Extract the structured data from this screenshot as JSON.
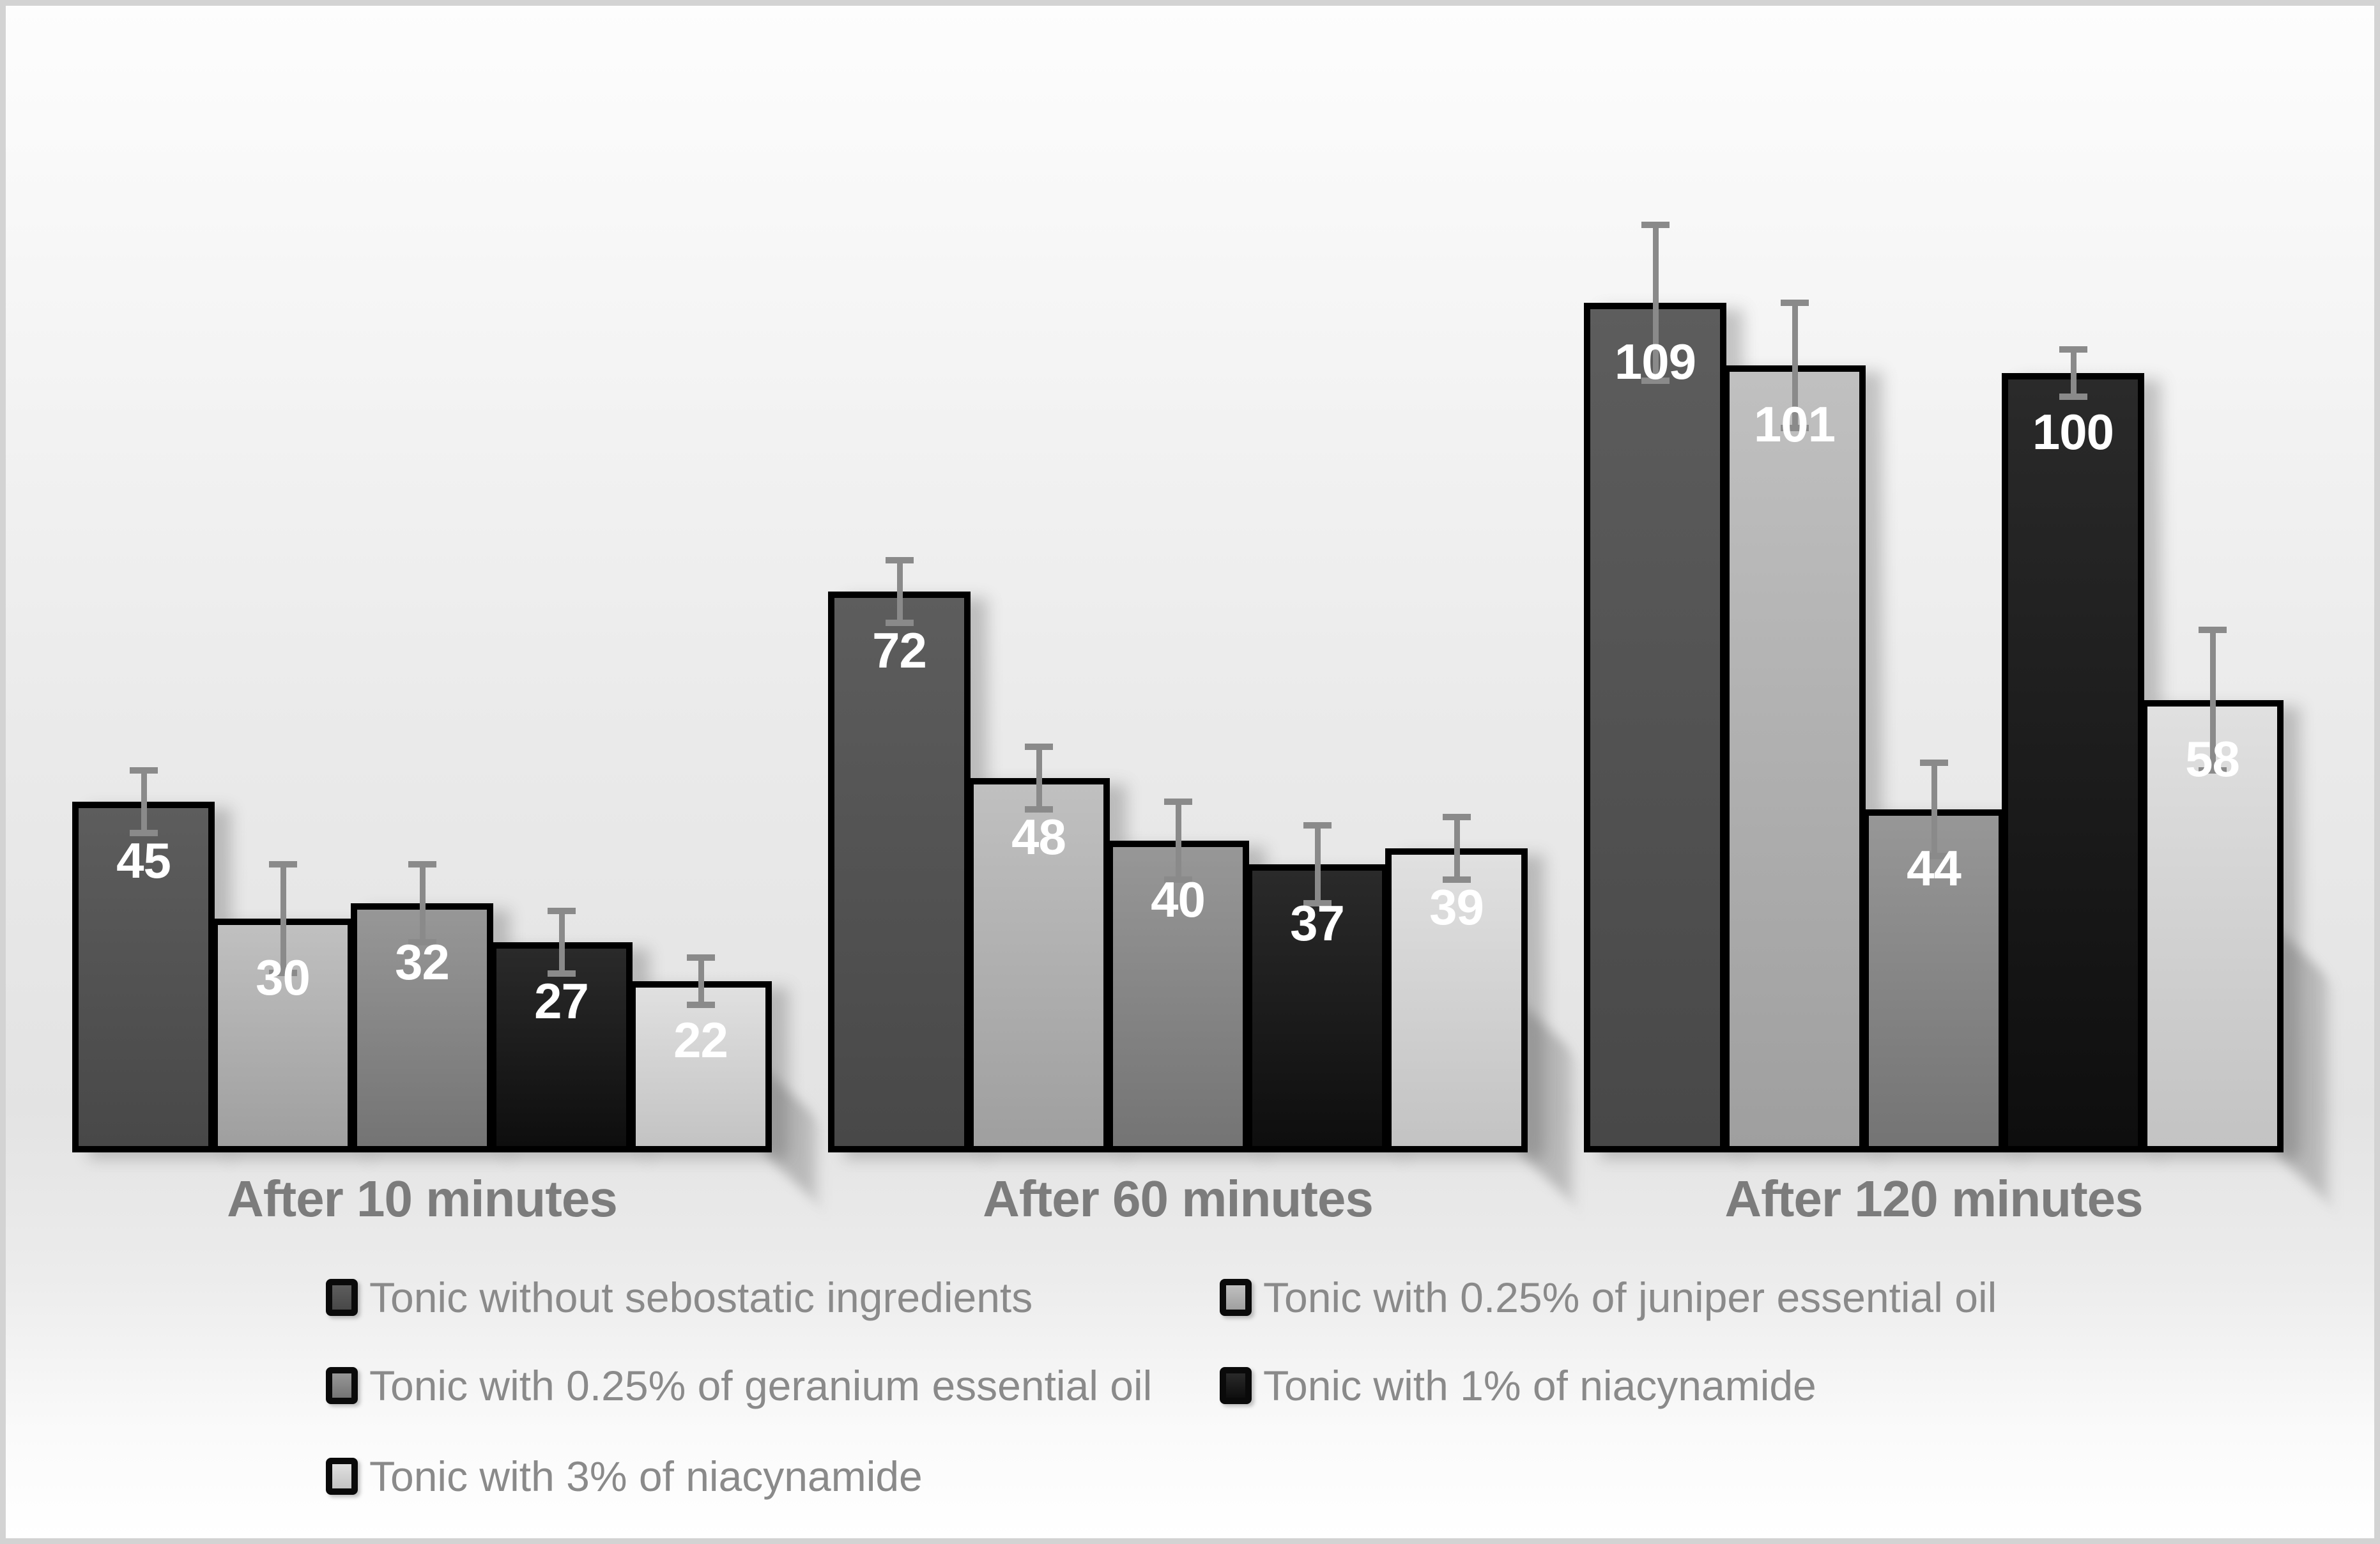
{
  "chart_data": {
    "type": "bar",
    "title": "",
    "categories": [
      "After 10 minutes",
      "After 60 minutes",
      "After 120 minutes"
    ],
    "series": [
      {
        "name": "Tonic without sebostatic ingredients",
        "values": [
          45,
          72,
          109
        ],
        "errors": [
          4,
          4,
          10
        ],
        "color_top": "#5d5d5d",
        "color_bottom": "#484848"
      },
      {
        "name": "Tonic with 0.25% of juniper essential oil",
        "values": [
          30,
          48,
          101
        ],
        "errors": [
          7,
          4,
          8
        ],
        "color_top": "#c0c0c0",
        "color_bottom": "#9f9f9f"
      },
      {
        "name": "Tonic with 0.25% of geranium essential oil",
        "values": [
          32,
          40,
          44
        ],
        "errors": [
          5,
          5,
          6
        ],
        "color_top": "#979797",
        "color_bottom": "#747474"
      },
      {
        "name": "Tonic with 1% of niacynamide",
        "values": [
          27,
          37,
          100
        ],
        "errors": [
          4,
          5,
          3
        ],
        "color_top": "#2a2a2a",
        "color_bottom": "#0e0e0e"
      },
      {
        "name": "Tonic with 3% of niacynamide",
        "values": [
          22,
          39,
          58
        ],
        "errors": [
          3,
          4,
          9
        ],
        "color_top": "#e0e0e0",
        "color_bottom": "#c3c3c3"
      }
    ],
    "ylim": [
      0,
      120
    ],
    "grid": false,
    "axes_visible": false,
    "value_labels_position": "inside-end",
    "legend_position": "bottom-left",
    "colors": {
      "bar_outline": "#000000",
      "error_bar": "#8a8a8a",
      "value_label": "#ffffff",
      "category_label": "#7c7c7c",
      "legend_text": "#8a8a8a",
      "frame_border": "#d3d3d3"
    }
  }
}
